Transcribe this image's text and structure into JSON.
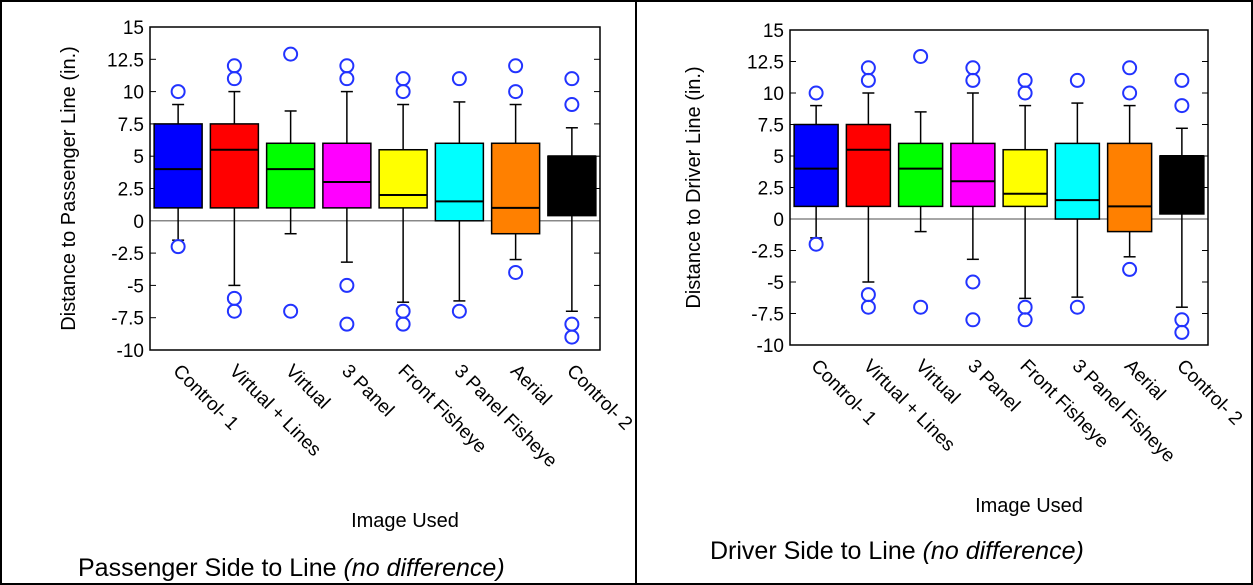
{
  "chart_data": [
    {
      "type": "box",
      "ylabel": "Distance to Passenger Line (in.)",
      "xlabel": "Image Used",
      "caption": "Passenger Side to Line",
      "caption_note": "(no difference)",
      "categories": [
        "Control- 1",
        "Virtual + Lines",
        "Virtual",
        "3 Panel",
        "Front Fisheye",
        "3 Panel Fisheye",
        "Aerial",
        "Control- 2"
      ],
      "colors": [
        "#0000ff",
        "#ff0000",
        "#00ff00",
        "#ff00ff",
        "#ffff00",
        "#00ffff",
        "#ff8000",
        "#000000"
      ],
      "boxes": [
        {
          "low": -1.5,
          "q1": 1,
          "median": 4,
          "q3": 7.5,
          "high": 9,
          "outliers": [
            10,
            -2
          ]
        },
        {
          "low": -5,
          "q1": 1,
          "median": 5.5,
          "q3": 7.5,
          "high": 10,
          "outliers": [
            12,
            11,
            -6,
            -7
          ]
        },
        {
          "low": -1,
          "q1": 1,
          "median": 4,
          "q3": 6,
          "high": 8.5,
          "outliers": [
            12.9,
            -7
          ]
        },
        {
          "low": -3.2,
          "q1": 1,
          "median": 3,
          "q3": 6,
          "high": 10,
          "outliers": [
            12,
            11,
            -5,
            -8
          ]
        },
        {
          "low": -6.3,
          "q1": 1,
          "median": 2,
          "q3": 5.5,
          "high": 9,
          "outliers": [
            11,
            10,
            -7,
            -8
          ]
        },
        {
          "low": -6.2,
          "q1": 0,
          "median": 1.5,
          "q3": 6,
          "high": 9.2,
          "outliers": [
            11,
            -7
          ]
        },
        {
          "low": -3,
          "q1": -1,
          "median": 1,
          "q3": 6,
          "high": 9,
          "outliers": [
            12,
            10,
            -4
          ]
        },
        {
          "low": -7,
          "q1": 0.4,
          "median": 5,
          "q3": 5,
          "high": 7.2,
          "outliers": [
            11,
            9,
            -8,
            -9
          ]
        }
      ],
      "reference_line": 0,
      "ylim": [
        -10,
        15
      ],
      "yticks": [
        -10,
        -7.5,
        -5,
        -2.5,
        0,
        2.5,
        5,
        7.5,
        10,
        12.5,
        15
      ]
    },
    {
      "type": "box",
      "ylabel": "Distance to Driver Line (in.)",
      "xlabel": "Image Used",
      "caption": "Driver Side to Line",
      "caption_note": "(no difference)",
      "categories": [
        "Control- 1",
        "Virtual + Lines",
        "Virtual",
        "3 Panel",
        "Front Fisheye",
        "3 Panel Fisheye",
        "Aerial",
        "Control- 2"
      ],
      "colors": [
        "#0000ff",
        "#ff0000",
        "#00ff00",
        "#ff00ff",
        "#ffff00",
        "#00ffff",
        "#ff8000",
        "#000000"
      ],
      "boxes": [
        {
          "low": -1.5,
          "q1": 1,
          "median": 4,
          "q3": 7.5,
          "high": 9,
          "outliers": [
            10,
            -2
          ]
        },
        {
          "low": -5,
          "q1": 1,
          "median": 5.5,
          "q3": 7.5,
          "high": 10,
          "outliers": [
            12,
            11,
            -6,
            -7
          ]
        },
        {
          "low": -1,
          "q1": 1,
          "median": 4,
          "q3": 6,
          "high": 8.5,
          "outliers": [
            12.9,
            -7
          ]
        },
        {
          "low": -3.2,
          "q1": 1,
          "median": 3,
          "q3": 6,
          "high": 10,
          "outliers": [
            12,
            11,
            -5,
            -8
          ]
        },
        {
          "low": -6.3,
          "q1": 1,
          "median": 2,
          "q3": 5.5,
          "high": 9,
          "outliers": [
            11,
            10,
            -7,
            -8
          ]
        },
        {
          "low": -6.2,
          "q1": 0,
          "median": 1.5,
          "q3": 6,
          "high": 9.2,
          "outliers": [
            11,
            -7
          ]
        },
        {
          "low": -3,
          "q1": -1,
          "median": 1,
          "q3": 6,
          "high": 9,
          "outliers": [
            12,
            10,
            -4
          ]
        },
        {
          "low": -7,
          "q1": 0.4,
          "median": 5,
          "q3": 5,
          "high": 7.2,
          "outliers": [
            11,
            9,
            -8,
            -9
          ]
        }
      ],
      "reference_line": 0,
      "ylim": [
        -10,
        15
      ],
      "yticks": [
        -10,
        -7.5,
        -5,
        -2.5,
        0,
        2.5,
        5,
        7.5,
        10,
        12.5,
        15
      ]
    }
  ]
}
